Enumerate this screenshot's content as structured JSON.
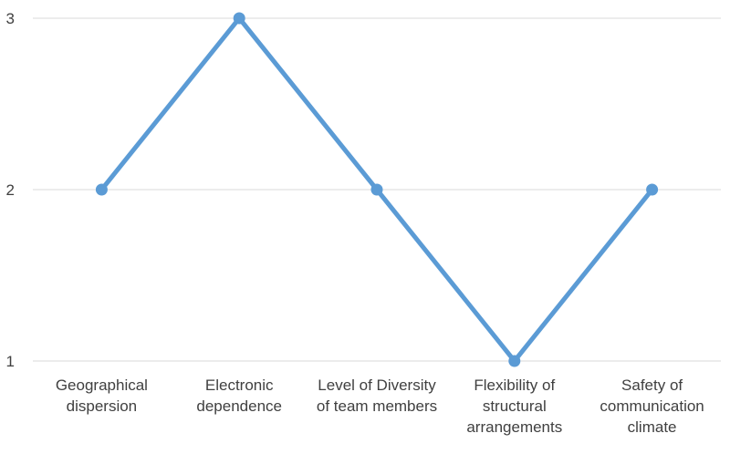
{
  "chart_data": {
    "type": "line",
    "title": "",
    "xlabel": "",
    "ylabel": "",
    "categories": [
      [
        "Geographical",
        "dispersion"
      ],
      [
        "Electronic",
        "dependence"
      ],
      [
        "Level of Diversity",
        "of team members"
      ],
      [
        "Flexibility of",
        "structural",
        "arrangements"
      ],
      [
        "Safety of",
        "communication",
        "climate"
      ]
    ],
    "y_ticks": [
      "1",
      "2",
      "3"
    ],
    "ylim": [
      1,
      3
    ],
    "grid": true,
    "legend": "none",
    "series": [
      {
        "values": [
          2,
          3,
          2,
          1,
          2
        ]
      }
    ],
    "colors": {
      "series": "#5B9BD5",
      "grid": "#D9D9D9",
      "text": "#404040"
    }
  }
}
